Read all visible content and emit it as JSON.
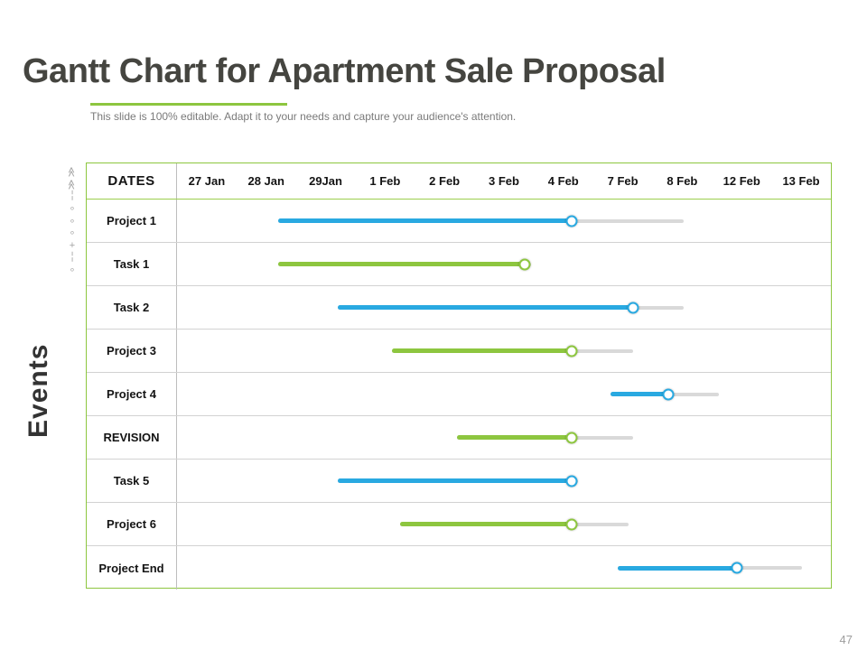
{
  "title": "Gantt Chart for Apartment Sale Proposal",
  "subtitle": "This slide is 100% editable. Adapt it to your needs and capture your audience's attention.",
  "events_label": "Events",
  "page_number": "47",
  "colors": {
    "blue": "#29a9e1",
    "green": "#8dc63f",
    "track": "#d9d9d9",
    "accent": "#8dc63f"
  },
  "decor_glyphs": [
    "≫",
    "≫",
    "╎",
    "∘",
    "∘",
    "∘",
    "+",
    "╎",
    "∘"
  ],
  "chart_data": {
    "type": "gantt",
    "title": "Gantt Chart for Apartment Sale Proposal",
    "dates_label": "DATES",
    "dates": [
      "27 Jan",
      "28 Jan",
      "29Jan",
      "1 Feb",
      "2 Feb",
      "3 Feb",
      "4 Feb",
      "7 Feb",
      "8 Feb",
      "12 Feb",
      "13 Feb"
    ],
    "column_count": 11,
    "axis_note": "start/end/track_end are in date-column units, 0 = left edge of 27 Jan column, 11 = right edge of 13 Feb column",
    "rows": [
      {
        "label": "Project 1",
        "color": "blue",
        "start": 1.7,
        "end": 6.64,
        "track_end": 8.52
      },
      {
        "label": "Task 1",
        "color": "green",
        "start": 1.7,
        "end": 5.85,
        "track_end": 5.95
      },
      {
        "label": "Task 2",
        "color": "blue",
        "start": 2.71,
        "end": 7.68,
        "track_end": 8.52
      },
      {
        "label": "Project 3",
        "color": "green",
        "start": 3.62,
        "end": 6.64,
        "track_end": 7.67
      },
      {
        "label": "Project 4",
        "color": "blue",
        "start": 7.29,
        "end": 8.26,
        "track_end": 9.12
      },
      {
        "label": "REVISION",
        "color": "green",
        "start": 4.71,
        "end": 6.64,
        "track_end": 7.67
      },
      {
        "label": "Task 5",
        "color": "blue",
        "start": 2.71,
        "end": 6.64,
        "track_end": 6.74
      },
      {
        "label": "Project 6",
        "color": "green",
        "start": 3.76,
        "end": 6.64,
        "track_end": 7.59
      },
      {
        "label": "Project End",
        "color": "blue",
        "start": 7.42,
        "end": 9.42,
        "track_end": 10.52
      }
    ]
  }
}
